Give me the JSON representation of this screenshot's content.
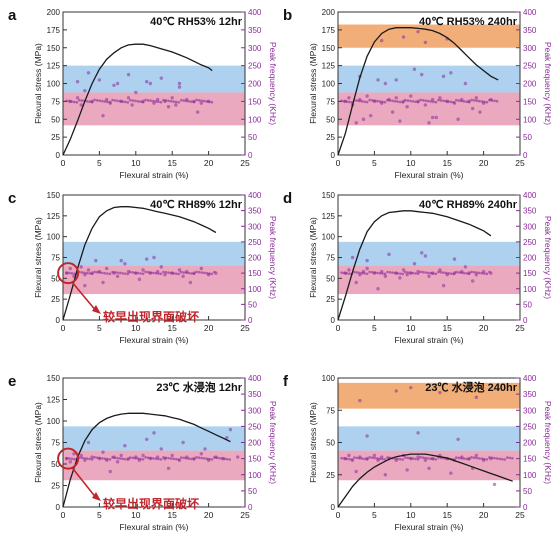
{
  "figure": {
    "colors": {
      "stress_curve": "#1a1a1a",
      "freq_points": "#8a2a9a",
      "freq_axis": "#8a2a9a",
      "band_blue": "#9fc9ec",
      "band_pink": "#e69ab3",
      "band_orange": "#f0a060",
      "callout": "#c0272d"
    }
  },
  "chart_data": [
    {
      "panel": "a",
      "type": "line+scatter",
      "title": "40℃ RH53% 12hr",
      "xlabel": "Flexural strain (%)",
      "ylabel_left": "Flexural stress (MPa)",
      "ylabel_right": "Peak frequency (KHz)",
      "xlim": [
        0,
        25
      ],
      "ylim_left": [
        0,
        200
      ],
      "ylim_right": [
        0,
        400
      ],
      "xticks": [
        "0",
        "5",
        "10",
        "15",
        "20",
        "25"
      ],
      "yticks_left": [
        "0",
        "25",
        "50",
        "75",
        "100",
        "125",
        "150",
        "175",
        "200"
      ],
      "yticks_right": [
        "0",
        "50",
        "100",
        "150",
        "200",
        "250",
        "300",
        "350",
        "400"
      ],
      "bands_khz": [
        {
          "color": "pink",
          "from": 83,
          "to": 175
        },
        {
          "color": "blue",
          "from": 175,
          "to": 250
        }
      ],
      "stress_curve": {
        "x": [
          0,
          1,
          2,
          3,
          4,
          5,
          6,
          7,
          8,
          9,
          10,
          11,
          12,
          13,
          14,
          15,
          16,
          17,
          18,
          19,
          20,
          20.5
        ],
        "y": [
          0,
          22,
          48,
          75,
          100,
          120,
          134,
          143,
          150,
          154,
          155,
          155,
          153,
          150,
          147,
          144,
          140,
          136,
          131,
          126,
          122,
          118
        ]
      },
      "freq_points": {
        "x": [
          1,
          2,
          2.5,
          3,
          4,
          5,
          6,
          6.5,
          7,
          8,
          9,
          9.5,
          10,
          11,
          12,
          12.5,
          13,
          14,
          15,
          15.5,
          16,
          17,
          18,
          19,
          20,
          3.5,
          7.5,
          11.5,
          14.5,
          18.5,
          2,
          9,
          16,
          5.5,
          13.5
        ],
        "y": [
          150,
          160,
          140,
          180,
          150,
          210,
          155,
          145,
          195,
          150,
          160,
          140,
          175,
          150,
          200,
          145,
          155,
          150,
          160,
          140,
          200,
          155,
          150,
          145,
          150,
          230,
          200,
          205,
          135,
          120,
          205,
          225,
          190,
          110,
          215
        ]
      },
      "annotation": ""
    },
    {
      "panel": "b",
      "type": "line+scatter",
      "title": "40℃ RH53% 240hr",
      "xlabel": "Flexural strain (%)",
      "ylabel_left": "Flexural stress (MPa)",
      "ylabel_right": "Peak frequency (KHz)",
      "xlim": [
        0,
        25
      ],
      "ylim_left": [
        0,
        200
      ],
      "ylim_right": [
        0,
        400
      ],
      "xticks": [
        "0",
        "5",
        "10",
        "15",
        "20",
        "25"
      ],
      "yticks_left": [
        "0",
        "25",
        "50",
        "75",
        "100",
        "125",
        "150",
        "175",
        "200"
      ],
      "yticks_right": [
        "0",
        "50",
        "100",
        "150",
        "200",
        "250",
        "300",
        "350",
        "400"
      ],
      "bands_khz": [
        {
          "color": "pink",
          "from": 83,
          "to": 175
        },
        {
          "color": "blue",
          "from": 175,
          "to": 250
        },
        {
          "color": "orange",
          "from": 300,
          "to": 365
        }
      ],
      "stress_curve": {
        "x": [
          0,
          1,
          2,
          3,
          4,
          5,
          6,
          7,
          8,
          9,
          10,
          11,
          12,
          13,
          14,
          15,
          16,
          17,
          18,
          19,
          20,
          21,
          22
        ],
        "y": [
          0,
          30,
          70,
          108,
          138,
          158,
          170,
          176,
          178,
          178,
          178,
          177,
          176,
          174,
          170,
          164,
          156,
          146,
          136,
          126,
          118,
          110,
          105
        ]
      },
      "freq_points": {
        "x": [
          1,
          1.5,
          2,
          3,
          3.5,
          4,
          5,
          5.5,
          6,
          7,
          7.5,
          8,
          9,
          9.5,
          10,
          11,
          11.5,
          12,
          13,
          13.5,
          14,
          15,
          15.5,
          16,
          17,
          18,
          18.5,
          19,
          20,
          21,
          2.5,
          4.5,
          6.5,
          8.5,
          10.5,
          12.5,
          14.5,
          16.5,
          19.5,
          3,
          8,
          13,
          17.5,
          6,
          9,
          11,
          15,
          12
        ],
        "y": [
          150,
          160,
          140,
          155,
          100,
          165,
          150,
          210,
          145,
          155,
          120,
          160,
          150,
          135,
          165,
          150,
          225,
          140,
          155,
          105,
          160,
          150,
          230,
          145,
          155,
          150,
          130,
          160,
          145,
          155,
          90,
          110,
          200,
          95,
          240,
          90,
          220,
          100,
          120,
          220,
          210,
          105,
          200,
          320,
          330,
          345,
          325,
          315
        ]
      },
      "annotation": ""
    },
    {
      "panel": "c",
      "type": "line+scatter",
      "title": "40℃ RH89% 12hr",
      "xlabel": "Flexural strain (%)",
      "ylabel_left": "Flexural stress (MPa)",
      "ylabel_right": "Peak frequency (KHz)",
      "xlim": [
        0,
        25
      ],
      "ylim_left": [
        0,
        150
      ],
      "ylim_right": [
        0,
        400
      ],
      "xticks": [
        "0",
        "5",
        "10",
        "15",
        "20",
        "25"
      ],
      "yticks_left": [
        "0",
        "25",
        "50",
        "75",
        "100",
        "125",
        "150"
      ],
      "yticks_right": [
        "0",
        "50",
        "100",
        "150",
        "200",
        "250",
        "300",
        "350",
        "400"
      ],
      "bands_khz": [
        {
          "color": "pink",
          "from": 83,
          "to": 175
        },
        {
          "color": "blue",
          "from": 175,
          "to": 250
        }
      ],
      "stress_curve": {
        "x": [
          0,
          1,
          2,
          3,
          4,
          5,
          6,
          7,
          8,
          9,
          10,
          11,
          12,
          13,
          14,
          15,
          16,
          17,
          18,
          19,
          20,
          21
        ],
        "y": [
          0,
          30,
          62,
          90,
          110,
          124,
          131,
          135,
          136,
          136,
          135,
          134,
          132,
          130,
          128,
          126,
          124,
          121,
          118,
          114,
          110,
          105
        ]
      },
      "freq_points": {
        "x": [
          0.5,
          1,
          1.5,
          2,
          2.5,
          3,
          3.5,
          4,
          5,
          5.5,
          6,
          7,
          7.5,
          8,
          9,
          10,
          10.5,
          11,
          12,
          13,
          13.5,
          14,
          15,
          16,
          16.5,
          17,
          18,
          19,
          20,
          21,
          4.5,
          8.5,
          12.5,
          17.5,
          3,
          11.5
        ],
        "y": [
          150,
          165,
          140,
          155,
          170,
          145,
          160,
          150,
          155,
          120,
          165,
          150,
          140,
          190,
          155,
          150,
          130,
          160,
          150,
          155,
          170,
          145,
          150,
          160,
          140,
          155,
          150,
          165,
          145,
          150,
          190,
          180,
          200,
          120,
          110,
          195
        ]
      },
      "annotation": "较早出现界面破坏"
    },
    {
      "panel": "d",
      "type": "line+scatter",
      "title": "40℃ RH89% 240hr",
      "xlabel": "Flexural strain (%)",
      "ylabel_left": "Flexural stress (MPa)",
      "ylabel_right": "Peak frequency (KHz)",
      "xlim": [
        0,
        25
      ],
      "ylim_left": [
        0,
        150
      ],
      "ylim_right": [
        0,
        400
      ],
      "xticks": [
        "0",
        "5",
        "10",
        "15",
        "20",
        "25"
      ],
      "yticks_left": [
        "0",
        "25",
        "50",
        "75",
        "100",
        "125",
        "150"
      ],
      "yticks_right": [
        "0",
        "50",
        "100",
        "150",
        "200",
        "250",
        "300",
        "350",
        "400"
      ],
      "bands_khz": [
        {
          "color": "pink",
          "from": 83,
          "to": 175
        },
        {
          "color": "blue",
          "from": 175,
          "to": 250
        }
      ],
      "stress_curve": {
        "x": [
          0,
          1,
          2,
          3,
          4,
          5,
          6,
          7,
          8,
          9,
          10,
          11,
          12,
          13,
          14,
          15,
          16,
          17,
          18,
          19,
          20,
          21
        ],
        "y": [
          0,
          28,
          58,
          85,
          106,
          118,
          125,
          129,
          130,
          131,
          131,
          130,
          129,
          128,
          126,
          124,
          121,
          118,
          115,
          111,
          107,
          101
        ]
      },
      "freq_points": {
        "x": [
          1,
          1.5,
          2,
          3,
          3.5,
          4,
          5,
          6,
          6.5,
          7,
          8,
          9,
          9.5,
          10,
          11,
          12,
          12.5,
          13,
          14,
          15,
          16,
          17,
          17.5,
          18,
          19,
          20,
          21,
          2.5,
          5.5,
          8.5,
          11.5,
          14.5,
          18.5,
          4,
          10.5,
          16
        ],
        "y": [
          150,
          160,
          200,
          145,
          155,
          165,
          150,
          155,
          140,
          210,
          150,
          160,
          145,
          150,
          155,
          205,
          140,
          150,
          160,
          145,
          150,
          155,
          170,
          150,
          145,
          155,
          150,
          120,
          100,
          135,
          215,
          110,
          125,
          190,
          180,
          195
        ],
        "note": ""
      },
      "annotation": ""
    },
    {
      "panel": "e",
      "type": "line+scatter",
      "title": "23℃ 水浸泡 12hr",
      "xlabel": "Flexural strain (%)",
      "ylabel_left": "Flexural stress (MPa)",
      "ylabel_right": "Peak frequency (KHz)",
      "xlim": [
        0,
        25
      ],
      "ylim_left": [
        0,
        150
      ],
      "ylim_right": [
        0,
        400
      ],
      "xticks": [
        "0",
        "5",
        "10",
        "15",
        "20",
        "25"
      ],
      "yticks_left": [
        "0",
        "25",
        "50",
        "75",
        "100",
        "125",
        "150"
      ],
      "yticks_right": [
        "0",
        "50",
        "100",
        "150",
        "200",
        "250",
        "300",
        "350",
        "400"
      ],
      "bands_khz": [
        {
          "color": "pink",
          "from": 83,
          "to": 175
        },
        {
          "color": "blue",
          "from": 175,
          "to": 250
        }
      ],
      "stress_curve": {
        "x": [
          0,
          1,
          2,
          3,
          4,
          5,
          6,
          7,
          8,
          9,
          10,
          11,
          12,
          13,
          14,
          15,
          16,
          17,
          18,
          19,
          20,
          21,
          22,
          23
        ],
        "y": [
          0,
          32,
          58,
          77,
          90,
          98,
          103,
          106,
          108,
          109,
          109,
          109,
          108,
          107,
          106,
          104,
          102,
          99,
          96,
          92,
          88,
          84,
          80,
          76
        ]
      },
      "freq_points": {
        "x": [
          0.5,
          1,
          1.5,
          2,
          2.5,
          3,
          4,
          5,
          5.5,
          6,
          7,
          7.5,
          8,
          9,
          10,
          10.5,
          11,
          12,
          12.5,
          13,
          14,
          15,
          16,
          17,
          18,
          19,
          20,
          21,
          22,
          23,
          24,
          3.5,
          8.5,
          11.5,
          13.5,
          16.5,
          19.5,
          22.5,
          6.5,
          14.5
        ],
        "y": [
          150,
          140,
          165,
          150,
          160,
          145,
          155,
          150,
          170,
          145,
          155,
          140,
          160,
          150,
          155,
          145,
          160,
          150,
          230,
          155,
          150,
          160,
          145,
          155,
          150,
          165,
          145,
          155,
          150,
          240,
          155,
          200,
          190,
          210,
          180,
          200,
          180,
          215,
          110,
          120
        ]
      },
      "annotation": "较早出现界面破坏"
    },
    {
      "panel": "f",
      "type": "line+scatter",
      "title": "23℃ 水浸泡 240hr",
      "xlabel": "Flexural strain (%)",
      "ylabel_left": "Flexural stress (MPa)",
      "ylabel_right": "Peak frequency (KHz)",
      "xlim": [
        0,
        25
      ],
      "ylim_left": [
        0,
        100
      ],
      "ylim_right": [
        0,
        400
      ],
      "xticks": [
        "0",
        "5",
        "10",
        "15",
        "20",
        "25"
      ],
      "yticks_left": [
        "0",
        "25",
        "50",
        "75",
        "100"
      ],
      "yticks_right": [
        "0",
        "50",
        "100",
        "150",
        "200",
        "250",
        "300",
        "350",
        "400"
      ],
      "bands_khz": [
        {
          "color": "pink",
          "from": 83,
          "to": 175
        },
        {
          "color": "blue",
          "from": 175,
          "to": 250
        },
        {
          "color": "orange",
          "from": 305,
          "to": 385
        }
      ],
      "stress_curve": {
        "x": [
          0,
          1,
          2,
          3,
          4,
          5,
          6,
          7,
          8,
          9,
          10,
          11,
          12,
          13,
          14,
          15,
          16,
          17,
          18,
          19,
          20,
          21,
          22,
          23,
          24
        ],
        "y": [
          0,
          8,
          16,
          22,
          27,
          31,
          34,
          37,
          39,
          40,
          41,
          41,
          41,
          40,
          39,
          38,
          36,
          34,
          32,
          30,
          28,
          26,
          24,
          22,
          20
        ]
      },
      "freq_points": {
        "x": [
          1,
          1.5,
          2,
          3,
          4,
          5,
          5.5,
          6,
          7,
          8,
          9,
          10,
          11,
          12,
          13,
          14,
          15,
          16,
          17,
          18,
          19,
          20,
          21,
          2.5,
          6.5,
          9.5,
          12.5,
          15.5,
          18.5,
          21.5,
          4,
          11,
          16.5,
          3,
          8,
          14,
          19,
          10
        ],
        "y": [
          150,
          160,
          145,
          155,
          150,
          160,
          145,
          155,
          150,
          145,
          160,
          150,
          155,
          145,
          150,
          160,
          150,
          145,
          155,
          150,
          160,
          145,
          150,
          110,
          100,
          115,
          120,
          105,
          120,
          70,
          220,
          230,
          210,
          330,
          360,
          355,
          340,
          370
        ]
      },
      "annotation": ""
    }
  ]
}
